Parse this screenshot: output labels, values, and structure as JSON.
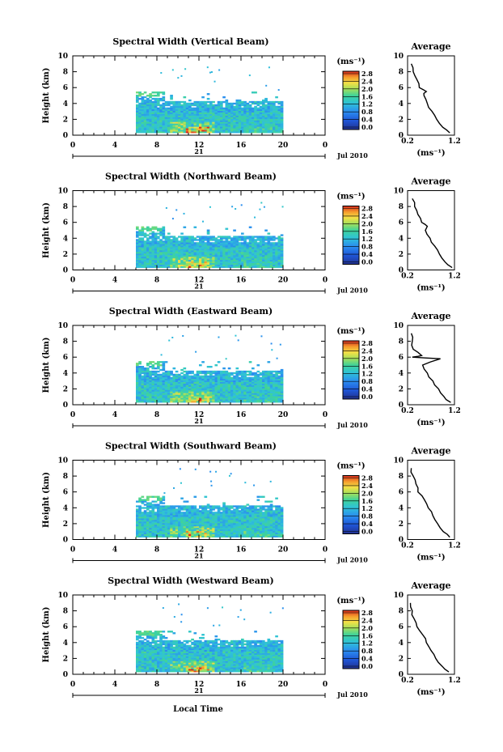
{
  "figure": {
    "ylabel": "Height (km)",
    "xlabel_bottom": "Local Time",
    "date_label": "Jul 2010",
    "day_label": "21",
    "unit_label": "(ms⁻¹)",
    "avg_title": "Average",
    "avg_xlabel": "(ms⁻¹)",
    "colorbar_ticks": [
      "0.0",
      "0.4",
      "0.8",
      "1.2",
      "1.6",
      "2.0",
      "2.4",
      "2.8"
    ],
    "colors": {
      "low": "#22318f",
      "mid": "#2fc2d8",
      "high": "#d7281c"
    }
  },
  "chart_data": [
    {
      "type": "heatmap",
      "title": "Spectral Width (Vertical Beam)",
      "ylabel": "Height (km)",
      "xlim": [
        0,
        20
      ],
      "ylim": [
        0,
        10
      ],
      "x_ticks": [
        "0",
        "4",
        "8",
        "12",
        "16",
        "20",
        "0"
      ],
      "y_ticks": [
        "0",
        "2",
        "4",
        "6",
        "8",
        "10"
      ],
      "data_time_range": [
        6,
        20
      ],
      "data_height_range": [
        0.3,
        5.5
      ],
      "colorbar": {
        "min": 0.0,
        "max": 2.8,
        "label": "(ms⁻¹)"
      },
      "average_profile": {
        "title": "Average",
        "xlabel": "(ms⁻¹)",
        "xlim": [
          0.2,
          1.2
        ],
        "ylim": [
          0,
          10
        ],
        "x_ticks": [
          "0.2",
          "1.2"
        ],
        "height": [
          0.3,
          1,
          2,
          3,
          4,
          5,
          5.5,
          6,
          7,
          8,
          9
        ],
        "width": [
          1.1,
          0.95,
          0.82,
          0.72,
          0.62,
          0.55,
          0.6,
          0.45,
          0.4,
          0.32,
          0.28
        ]
      }
    },
    {
      "type": "heatmap",
      "title": "Spectral Width (Northward Beam)",
      "ylabel": "Height (km)",
      "xlim": [
        0,
        20
      ],
      "ylim": [
        0,
        10
      ],
      "x_ticks": [
        "0",
        "4",
        "8",
        "12",
        "16",
        "20",
        "0"
      ],
      "y_ticks": [
        "0",
        "2",
        "4",
        "6",
        "8",
        "10"
      ],
      "data_time_range": [
        6,
        20
      ],
      "data_height_range": [
        0.3,
        5.5
      ],
      "colorbar": {
        "min": 0.0,
        "max": 2.8,
        "label": "(ms⁻¹)"
      },
      "average_profile": {
        "title": "Average",
        "xlabel": "(ms⁻¹)",
        "xlim": [
          0.2,
          1.2
        ],
        "ylim": [
          0,
          10
        ],
        "x_ticks": [
          "0.2",
          "1.2"
        ],
        "height": [
          0.3,
          1,
          2,
          3,
          4,
          5,
          5.5,
          6,
          7,
          8,
          9
        ],
        "width": [
          1.15,
          1.0,
          0.88,
          0.78,
          0.68,
          0.58,
          0.62,
          0.5,
          0.42,
          0.35,
          0.3
        ]
      }
    },
    {
      "type": "heatmap",
      "title": "Spectral Width (Eastward Beam)",
      "ylabel": "Height (km)",
      "xlim": [
        0,
        20
      ],
      "ylim": [
        0,
        10
      ],
      "x_ticks": [
        "0",
        "4",
        "8",
        "12",
        "16",
        "20",
        "0"
      ],
      "y_ticks": [
        "0",
        "2",
        "4",
        "6",
        "8",
        "10"
      ],
      "data_time_range": [
        6,
        20
      ],
      "data_height_range": [
        0.3,
        5.5
      ],
      "colorbar": {
        "min": 0.0,
        "max": 2.8,
        "label": "(ms⁻¹)"
      },
      "average_profile": {
        "title": "Average",
        "xlabel": "(ms⁻¹)",
        "xlim": [
          0.2,
          1.2
        ],
        "ylim": [
          0,
          10
        ],
        "x_ticks": [
          "0.2",
          "1.2"
        ],
        "height": [
          0.3,
          1,
          2,
          3,
          4,
          5,
          5.8,
          6,
          6.2,
          7,
          8,
          9
        ],
        "width": [
          1.12,
          0.98,
          0.86,
          0.74,
          0.62,
          0.52,
          0.9,
          0.3,
          0.5,
          0.32,
          0.3,
          0.28
        ]
      }
    },
    {
      "type": "heatmap",
      "title": "Spectral Width (Southward Beam)",
      "ylabel": "Height (km)",
      "xlim": [
        0,
        20
      ],
      "ylim": [
        0,
        10
      ],
      "x_ticks": [
        "0",
        "4",
        "8",
        "12",
        "16",
        "20",
        "0"
      ],
      "y_ticks": [
        "0",
        "2",
        "4",
        "6",
        "8",
        "10"
      ],
      "data_time_range": [
        6,
        20
      ],
      "data_height_range": [
        0.3,
        5.5
      ],
      "colorbar": {
        "min": 0.0,
        "max": 2.8,
        "label": "(ms⁻¹)"
      },
      "average_profile": {
        "title": "Average",
        "xlabel": "(ms⁻¹)",
        "xlim": [
          0.2,
          1.2
        ],
        "ylim": [
          0,
          10
        ],
        "x_ticks": [
          "0.2",
          "1.2"
        ],
        "height": [
          0.3,
          1,
          2,
          3,
          4,
          5,
          6,
          7,
          8,
          9
        ],
        "width": [
          1.1,
          0.96,
          0.84,
          0.74,
          0.64,
          0.56,
          0.42,
          0.38,
          0.32,
          0.28
        ]
      }
    },
    {
      "type": "heatmap",
      "title": "Spectral Width (Westward Beam)",
      "ylabel": "Height (km)",
      "xlim": [
        0,
        20
      ],
      "ylim": [
        0,
        10
      ],
      "x_ticks": [
        "0",
        "4",
        "8",
        "12",
        "16",
        "20",
        "0"
      ],
      "y_ticks": [
        "0",
        "2",
        "4",
        "6",
        "8",
        "10"
      ],
      "data_time_range": [
        6,
        20
      ],
      "data_height_range": [
        0.3,
        5.5
      ],
      "colorbar": {
        "min": 0.0,
        "max": 2.8,
        "label": "(ms⁻¹)"
      },
      "average_profile": {
        "title": "Average",
        "xlabel": "(ms⁻¹)",
        "xlim": [
          0.2,
          1.2
        ],
        "ylim": [
          0,
          10
        ],
        "x_ticks": [
          "0.2",
          "1.2"
        ],
        "height": [
          0.3,
          1,
          2,
          3,
          4,
          5,
          6,
          7,
          8,
          9
        ],
        "width": [
          1.08,
          0.94,
          0.8,
          0.7,
          0.6,
          0.52,
          0.4,
          0.34,
          0.3,
          0.26
        ]
      }
    }
  ]
}
